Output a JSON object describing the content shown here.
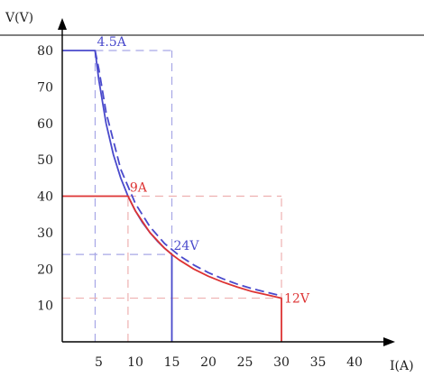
{
  "chart_data": {
    "type": "line",
    "xlabel": "I(A)",
    "ylabel": "V(V)",
    "xlim": [
      0,
      43
    ],
    "ylim": [
      0,
      90
    ],
    "xticks": [
      5,
      10,
      15,
      20,
      25,
      30,
      35,
      40
    ],
    "yticks": [
      10,
      20,
      30,
      40,
      50,
      60,
      70,
      80
    ],
    "grid": false,
    "colors": {
      "blue": "#4a4acc",
      "red": "#dd3333",
      "blue_guide": "#a7a7e6",
      "red_guide": "#eeb0b0"
    },
    "series": [
      {
        "color": "blue",
        "style": "solid",
        "x": [
          0,
          4.5,
          5,
          6,
          7,
          8,
          9,
          10,
          11,
          12,
          13,
          14,
          15,
          15
        ],
        "y": [
          80,
          80,
          72,
          60,
          51.4,
          45,
          40,
          36,
          32.7,
          30,
          27.7,
          25.7,
          24,
          0
        ]
      },
      {
        "color": "blue",
        "style": "dashed",
        "x": [
          4.5,
          5,
          6,
          8,
          10,
          12,
          14,
          16,
          18,
          20,
          22,
          24,
          26,
          28,
          30
        ],
        "y": [
          80,
          75,
          63,
          47.4,
          38,
          31.6,
          27,
          23.7,
          21.1,
          19,
          17.3,
          15.8,
          14.6,
          13.6,
          12.6
        ]
      },
      {
        "color": "red",
        "style": "solid",
        "x": [
          0,
          9,
          10,
          12,
          14,
          15,
          16,
          18,
          20,
          22,
          24,
          26,
          28,
          30,
          30
        ],
        "y": [
          40,
          40,
          36,
          30,
          25.7,
          24,
          22.5,
          20,
          18,
          16.4,
          15,
          13.8,
          12.9,
          12,
          0
        ]
      }
    ],
    "guides": [
      {
        "color": "blue",
        "x": [
          4.5,
          4.5
        ],
        "y": [
          0,
          80
        ]
      },
      {
        "color": "blue",
        "x": [
          15,
          15
        ],
        "y": [
          0,
          80
        ]
      },
      {
        "color": "blue",
        "x": [
          4.5,
          15
        ],
        "y": [
          80,
          80
        ]
      },
      {
        "color": "blue",
        "x": [
          0,
          15
        ],
        "y": [
          24,
          24
        ]
      },
      {
        "color": "red",
        "x": [
          9,
          9
        ],
        "y": [
          0,
          40
        ]
      },
      {
        "color": "red",
        "x": [
          30,
          30
        ],
        "y": [
          0,
          40
        ]
      },
      {
        "color": "red",
        "x": [
          9,
          30
        ],
        "y": [
          40,
          40
        ]
      },
      {
        "color": "red",
        "x": [
          0,
          30
        ],
        "y": [
          12,
          12
        ]
      }
    ],
    "annotations": [
      {
        "text": "4.5A",
        "color": "blue",
        "x": 4.5,
        "y": 80,
        "anchor": "above-right"
      },
      {
        "text": "9A",
        "color": "red",
        "x": 9,
        "y": 40,
        "anchor": "above-right"
      },
      {
        "text": "24V",
        "color": "blue",
        "x": 15,
        "y": 24,
        "anchor": "above-right"
      },
      {
        "text": "12V",
        "color": "red",
        "x": 30,
        "y": 12,
        "anchor": "right"
      }
    ]
  }
}
